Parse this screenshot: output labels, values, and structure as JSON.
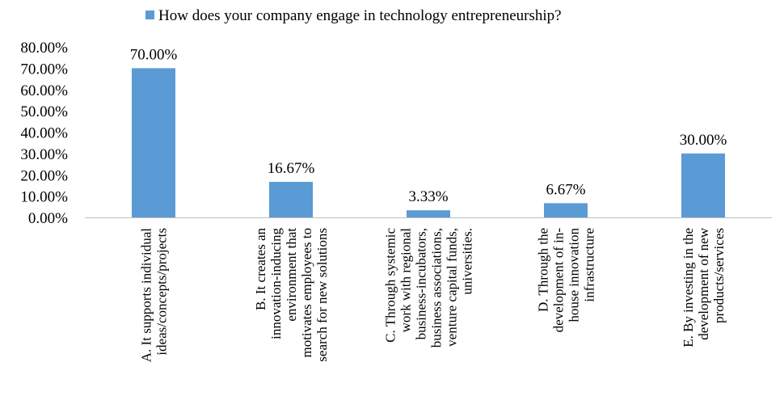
{
  "chart_data": {
    "type": "bar",
    "legend": {
      "label": "How does your company engage in technology entrepreneurship?",
      "placement": "top"
    },
    "categories": [
      [
        "A. It supports individual",
        "ideas/concepts/projects"
      ],
      [
        "B. It creates an",
        "innovation-inducing",
        "environment that",
        "motivates employees to",
        "search for new solutions"
      ],
      [
        "C. Through systemic",
        "work with regional",
        "business-incubators,",
        "business associations,",
        "venture capital funds,",
        "universities."
      ],
      [
        "D. Through the",
        "development of in-",
        "house innovation",
        "infrastructure"
      ],
      [
        "E. By investing in the",
        "development of new",
        "products/services"
      ]
    ],
    "values": [
      70.0,
      16.67,
      3.33,
      6.67,
      30.0
    ],
    "data_labels": [
      "70.00%",
      "16.67%",
      "3.33%",
      "6.67%",
      "30.00%"
    ],
    "yticks": [
      0,
      10,
      20,
      30,
      40,
      50,
      60,
      70,
      80
    ],
    "ytick_labels": [
      "0.00%",
      "10.00%",
      "20.00%",
      "30.00%",
      "40.00%",
      "50.00%",
      "60.00%",
      "70.00%",
      "80.00%"
    ],
    "ylim": [
      0,
      80
    ],
    "grid": false,
    "colors": {
      "bar": "#5B9BD5",
      "axis": "#BFBFBF"
    }
  }
}
